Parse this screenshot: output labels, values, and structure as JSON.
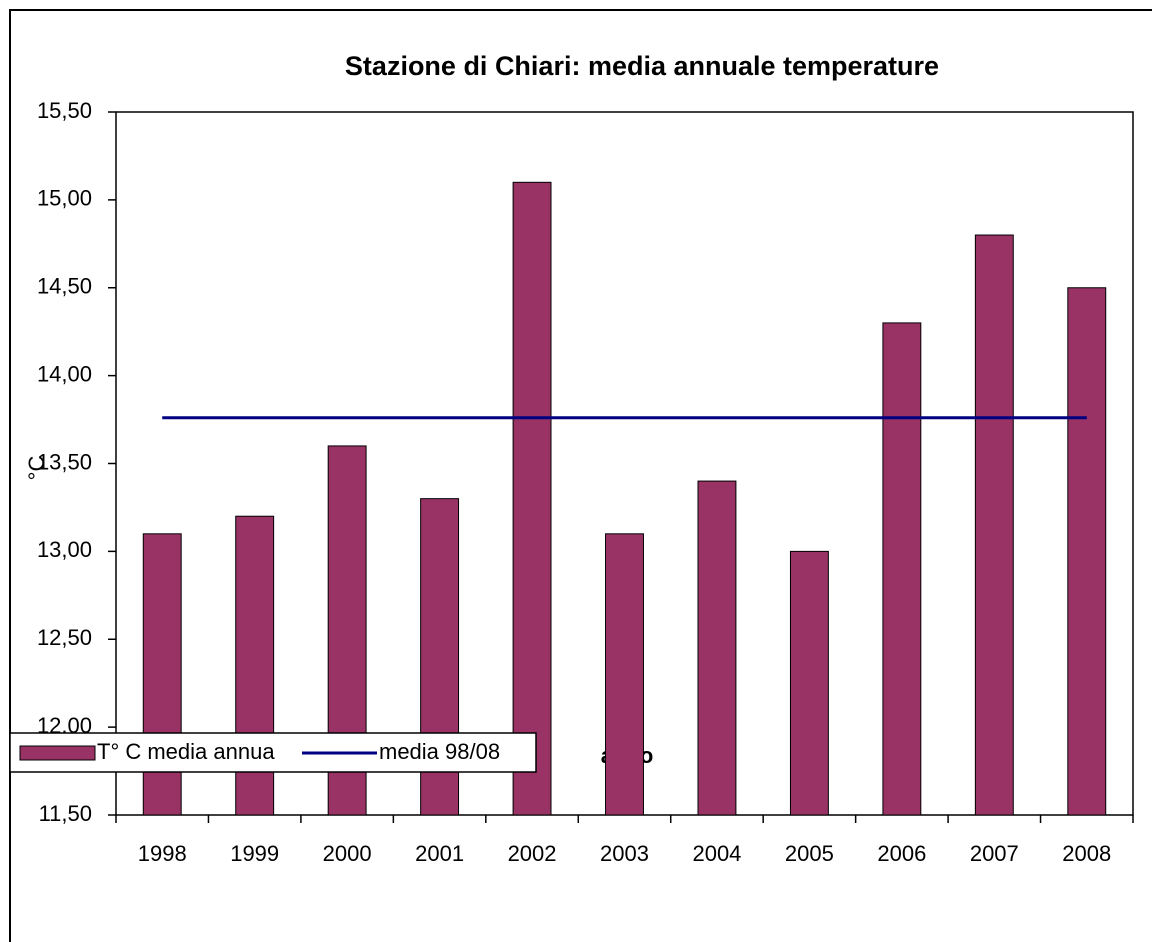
{
  "chart_data": {
    "type": "bar",
    "title": "Stazione di Chiari: media annuale temperature",
    "x_label": "anno",
    "y_label": "°C",
    "categories": [
      "1998",
      "1999",
      "2000",
      "2001",
      "2002",
      "2003",
      "2004",
      "2005",
      "2006",
      "2007",
      "2008"
    ],
    "series": [
      {
        "name": "T° C media annua",
        "type": "bar",
        "color": "#993366",
        "values": [
          13.1,
          13.2,
          13.6,
          13.3,
          15.1,
          13.1,
          13.4,
          13.0,
          14.3,
          14.8,
          14.5
        ]
      },
      {
        "name": "media 98/08",
        "type": "line",
        "color": "#000080",
        "values": [
          13.76,
          13.76,
          13.76,
          13.76,
          13.76,
          13.76,
          13.76,
          13.76,
          13.76,
          13.76,
          13.76
        ]
      }
    ],
    "ylim": [
      11.5,
      15.5
    ],
    "yticks": [
      {
        "value": 11.5,
        "label": "11,50"
      },
      {
        "value": 12,
        "label": "12,00"
      },
      {
        "value": 12.5,
        "label": "12,50"
      },
      {
        "value": 13,
        "label": "13,00"
      },
      {
        "value": 13.5,
        "label": "13,50"
      },
      {
        "value": 14,
        "label": "14,00"
      },
      {
        "value": 14.5,
        "label": "14,50"
      },
      {
        "value": 15,
        "label": "15,00"
      },
      {
        "value": 15.5,
        "label": "15,50"
      }
    ],
    "grid": false,
    "legend": "bottom-left"
  }
}
